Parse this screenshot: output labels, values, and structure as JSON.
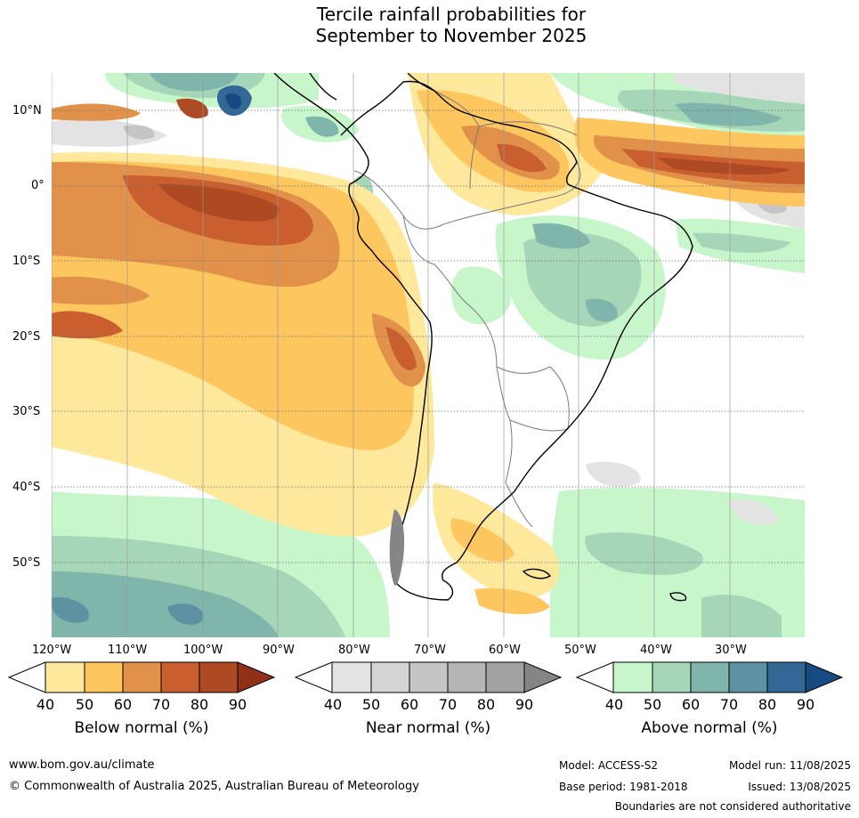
{
  "title": {
    "line1": "Tercile rainfall probabilities for",
    "line2": "September to November 2025"
  },
  "map": {
    "lat_ticks": [
      "10°N",
      "0°",
      "10°S",
      "20°S",
      "30°S",
      "40°S",
      "50°S"
    ],
    "lon_ticks": [
      "120°W",
      "110°W",
      "100°W",
      "90°W",
      "80°W",
      "70°W",
      "60°W",
      "50°W",
      "40°W",
      "30°W"
    ],
    "colors": {
      "ocean_white": "#ffffff",
      "coast": "#000000",
      "border": "#7a7a7a",
      "grid": "#6e6e6e"
    }
  },
  "colorbars": [
    {
      "label": "Below normal (%)",
      "ticks": [
        "40",
        "50",
        "60",
        "70",
        "80",
        "90"
      ],
      "colors": [
        "#ffffff",
        "#fee89c",
        "#fdc65f",
        "#e1914a",
        "#c95f2e",
        "#ad4923",
        "#903018"
      ]
    },
    {
      "label": "Near normal (%)",
      "ticks": [
        "40",
        "50",
        "60",
        "70",
        "80",
        "90"
      ],
      "colors": [
        "#ffffff",
        "#e3e3e3",
        "#d4d4d4",
        "#c5c5c5",
        "#b4b4b4",
        "#a2a2a2",
        "#858585"
      ]
    },
    {
      "label": "Above normal (%)",
      "ticks": [
        "40",
        "50",
        "60",
        "70",
        "80",
        "90"
      ],
      "colors": [
        "#ffffff",
        "#c7f6cb",
        "#a6d6b8",
        "#80b5ab",
        "#5c92a2",
        "#336796",
        "#174a80"
      ]
    }
  ],
  "footer": {
    "website": "www.bom.gov.au/climate",
    "copyright": "© Commonwealth of Australia 2025, Australian Bureau of Meteorology",
    "model": "Model: ACCESS-S2",
    "model_run": "Model run: 11/08/2025",
    "base_period": "Base period: 1981-2018",
    "issued": "Issued: 13/08/2025",
    "disclaimer": "Boundaries are not considered authoritative"
  }
}
